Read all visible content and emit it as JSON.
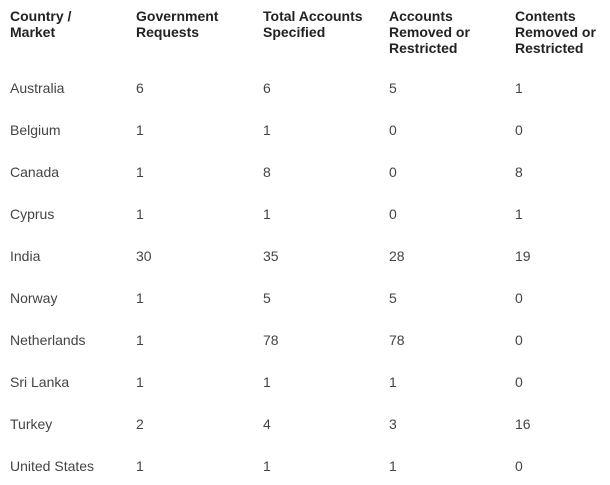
{
  "table": {
    "headers": [
      "Country /\nMarket",
      "Government\nRequests",
      "Total Accounts\nSpecified",
      "Accounts\nRemoved or\nRestricted",
      "Contents\nRemoved or\nRestricted"
    ],
    "rows": [
      [
        "Australia",
        "6",
        "6",
        "5",
        "1"
      ],
      [
        "Belgium",
        "1",
        "1",
        "0",
        "0"
      ],
      [
        "Canada",
        "1",
        "8",
        "0",
        "8"
      ],
      [
        "Cyprus",
        "1",
        "1",
        "0",
        "1"
      ],
      [
        "India",
        "30",
        "35",
        "28",
        "19"
      ],
      [
        "Norway",
        "1",
        "5",
        "5",
        "0"
      ],
      [
        "Netherlands",
        "1",
        "78",
        "78",
        "0"
      ],
      [
        "Sri Lanka",
        "1",
        "1",
        "1",
        "0"
      ],
      [
        "Turkey",
        "2",
        "4",
        "3",
        "16"
      ],
      [
        "United States",
        "1",
        "1",
        "1",
        "0"
      ]
    ]
  }
}
